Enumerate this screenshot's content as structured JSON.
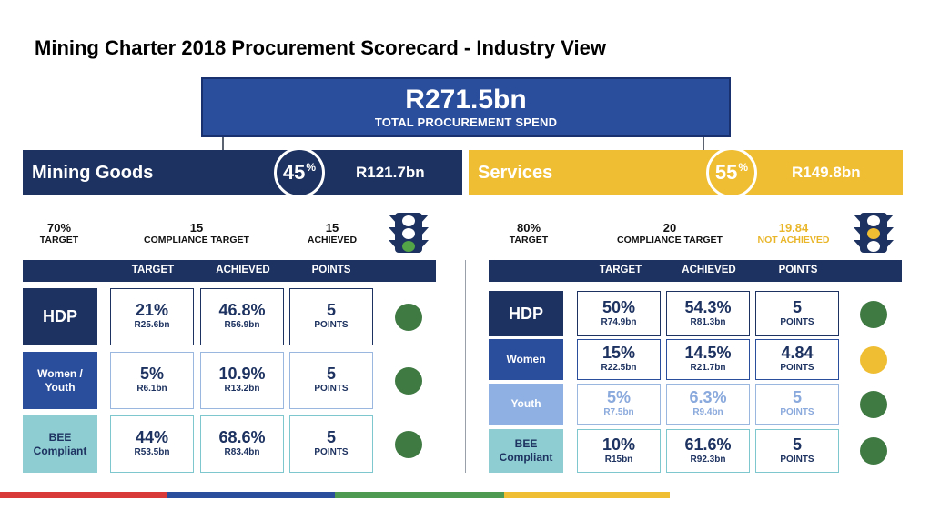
{
  "title": "Mining Charter 2018 Procurement Scorecard - Industry View",
  "total": {
    "value": "R271.5bn",
    "label": "TOTAL PROCUREMENT SPEND"
  },
  "headers": {
    "target": "TARGET",
    "achieved": "ACHIEVED",
    "points": "POINTS"
  },
  "goods": {
    "name": "Mining Goods",
    "share": "45",
    "share_unit": "%",
    "amount": "R121.7bn",
    "stats": {
      "target_value": "70%",
      "target_label": "TARGET",
      "compliance_value": "15",
      "compliance_label": "COMPLIANCE TARGET",
      "result_value": "15",
      "result_label": "ACHIEVED"
    },
    "traffic_light": "green",
    "rows": [
      {
        "label": "HDP",
        "target": "21%",
        "target_amount": "R25.6bn",
        "achieved": "46.8%",
        "achieved_amount": "R56.9bn",
        "points": "5",
        "points_label": "POINTS",
        "status": "green"
      },
      {
        "label": "Women / Youth",
        "target": "5%",
        "target_amount": "R6.1bn",
        "achieved": "10.9%",
        "achieved_amount": "R13.2bn",
        "points": "5",
        "points_label": "POINTS",
        "status": "green"
      },
      {
        "label": "BEE Compliant",
        "target": "44%",
        "target_amount": "R53.5bn",
        "achieved": "68.6%",
        "achieved_amount": "R83.4bn",
        "points": "5",
        "points_label": "POINTS",
        "status": "green"
      }
    ]
  },
  "services": {
    "name": "Services",
    "share": "55",
    "share_unit": "%",
    "amount": "R149.8bn",
    "stats": {
      "target_value": "80%",
      "target_label": "TARGET",
      "compliance_value": "20",
      "compliance_label": "COMPLIANCE TARGET",
      "result_value": "19.84",
      "result_label": "NOT ACHIEVED"
    },
    "traffic_light": "amber",
    "rows": [
      {
        "label": "HDP",
        "target": "50%",
        "target_amount": "R74.9bn",
        "achieved": "54.3%",
        "achieved_amount": "R81.3bn",
        "points": "5",
        "points_label": "POINTS",
        "status": "green"
      },
      {
        "label": "Women",
        "target": "15%",
        "target_amount": "R22.5bn",
        "achieved": "14.5%",
        "achieved_amount": "R21.7bn",
        "points": "4.84",
        "points_label": "POINTS",
        "status": "amber"
      },
      {
        "label": "Youth",
        "target": "5%",
        "target_amount": "R7.5bn",
        "achieved": "6.3%",
        "achieved_amount": "R9.4bn",
        "points": "5",
        "points_label": "POINTS",
        "status": "green"
      },
      {
        "label": "BEE Compliant",
        "target": "10%",
        "target_amount": "R15bn",
        "achieved": "61.6%",
        "achieved_amount": "R92.3bn",
        "points": "5",
        "points_label": "POINTS",
        "status": "green"
      }
    ]
  },
  "colors": {
    "navy": "#1d3260",
    "blue": "#2a4d9c",
    "yellow": "#f0be33",
    "green": "#3f7a43",
    "teal": "#8ecdd2",
    "light_blue": "#8fb0e3",
    "red": "#d83a3a"
  }
}
